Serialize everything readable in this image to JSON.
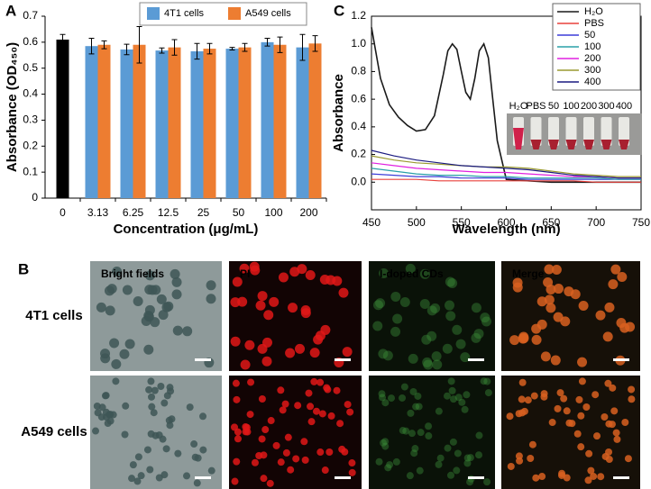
{
  "chart_data": [
    {
      "type": "bar",
      "panel_label": "A",
      "xlabel": "Concentration (μg/mL)",
      "ylabel": "Absorbance (OD₄₅₀)",
      "categories": [
        "0",
        "3.13",
        "6.25",
        "12.5",
        "25",
        "50",
        "100",
        "200"
      ],
      "series": [
        {
          "color": "#000000",
          "values": [
            0.61,
            null,
            null,
            null,
            null,
            null,
            null,
            null
          ],
          "errors": [
            0.02,
            null,
            null,
            null,
            null,
            null,
            null,
            null
          ]
        },
        {
          "name": "4T1 cells",
          "color": "#5b9bd5",
          "values": [
            null,
            0.585,
            0.572,
            0.568,
            0.565,
            0.575,
            0.6,
            0.58
          ],
          "errors": [
            null,
            0.03,
            0.02,
            0.01,
            0.03,
            0.005,
            0.015,
            0.05
          ]
        },
        {
          "name": "A549 cells",
          "color": "#ed7d31",
          "values": [
            null,
            0.59,
            0.59,
            0.58,
            0.575,
            0.58,
            0.59,
            0.595
          ],
          "errors": [
            null,
            0.015,
            0.07,
            0.03,
            0.02,
            0.015,
            0.03,
            0.03
          ]
        }
      ],
      "ylim": [
        0,
        0.7
      ],
      "yticks": [
        0,
        0.1,
        0.2,
        0.3,
        0.4,
        0.5,
        0.6,
        0.7
      ]
    },
    {
      "type": "line",
      "panel_label": "C",
      "xlabel": "Wavelength (nm)",
      "ylabel": "Absorbance",
      "x": [
        450,
        475,
        500,
        525,
        550,
        575,
        600,
        625,
        650,
        675,
        700,
        725,
        750
      ],
      "series": [
        {
          "name": "H₂O",
          "color": "#1a1a1a",
          "x": [
            450,
            460,
            470,
            480,
            490,
            500,
            510,
            520,
            530,
            535,
            540,
            545,
            550,
            555,
            560,
            565,
            570,
            575,
            580,
            585,
            590,
            600,
            625,
            650,
            700,
            750
          ],
          "values": [
            1.12,
            0.75,
            0.56,
            0.47,
            0.41,
            0.37,
            0.38,
            0.48,
            0.78,
            0.95,
            1.0,
            0.96,
            0.8,
            0.65,
            0.6,
            0.75,
            0.95,
            1.0,
            0.9,
            0.6,
            0.3,
            0.02,
            0.01,
            0.0,
            0.0,
            0.0
          ]
        },
        {
          "name": "PBS",
          "color": "#e8413c",
          "values": [
            0.02,
            0.02,
            0.02,
            0.01,
            0.01,
            0.01,
            0.01,
            0.01,
            0.01,
            0.01,
            0.0,
            0.0,
            0.0
          ]
        },
        {
          "name": "50",
          "color": "#3c3cd8",
          "values": [
            0.06,
            0.05,
            0.04,
            0.04,
            0.03,
            0.03,
            0.03,
            0.02,
            0.02,
            0.02,
            0.02,
            0.02,
            0.02
          ]
        },
        {
          "name": "100",
          "color": "#2aa0a8",
          "values": [
            0.1,
            0.08,
            0.06,
            0.05,
            0.05,
            0.04,
            0.04,
            0.03,
            0.03,
            0.03,
            0.03,
            0.02,
            0.02
          ]
        },
        {
          "name": "200",
          "color": "#e020e0",
          "values": [
            0.14,
            0.12,
            0.1,
            0.09,
            0.08,
            0.07,
            0.07,
            0.06,
            0.05,
            0.04,
            0.04,
            0.03,
            0.03
          ]
        },
        {
          "name": "300",
          "color": "#9a9a30",
          "values": [
            0.19,
            0.16,
            0.14,
            0.13,
            0.12,
            0.11,
            0.11,
            0.1,
            0.08,
            0.06,
            0.05,
            0.04,
            0.04
          ]
        },
        {
          "name": "400",
          "color": "#1a1a80",
          "values": [
            0.23,
            0.19,
            0.16,
            0.14,
            0.12,
            0.11,
            0.1,
            0.09,
            0.07,
            0.05,
            0.04,
            0.03,
            0.03
          ]
        }
      ],
      "xlim": [
        450,
        750
      ],
      "xticks": [
        450,
        500,
        550,
        600,
        650,
        700,
        750
      ],
      "ylim": [
        -0.2,
        1.2
      ],
      "yticks": [
        {
          "value": 0,
          "label": "0.0"
        },
        0.2,
        0.4,
        0.6,
        0.8,
        {
          "value": 1,
          "label": "1.0"
        },
        1.2
      ],
      "inset_labels": [
        "H₂O",
        "PBS",
        "50",
        "100",
        "200",
        "300",
        "400"
      ]
    }
  ],
  "panel_b": {
    "label": "B",
    "columns": [
      "Bright fields",
      "PI",
      "I-doped CDs",
      "Merge"
    ],
    "rows": [
      "4T1 cells",
      "A549 cells"
    ]
  }
}
